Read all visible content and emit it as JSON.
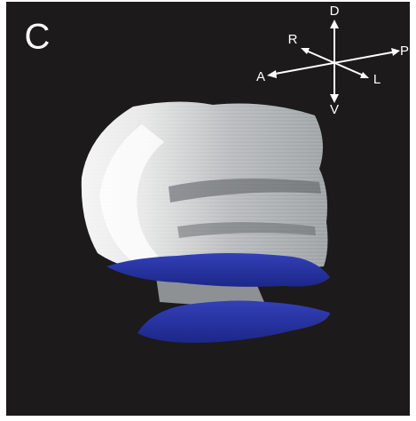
{
  "panel_label": "C",
  "compass": {
    "dorsal": "D",
    "ventral": "V",
    "anterior": "A",
    "posterior": "P",
    "right": "R",
    "left": "L"
  }
}
